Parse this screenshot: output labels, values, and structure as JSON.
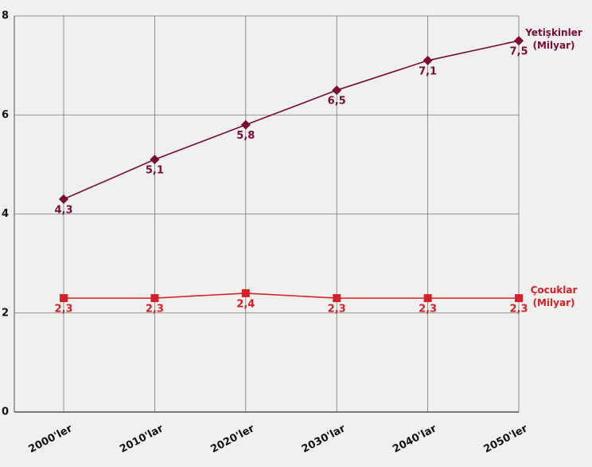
{
  "chart_data": {
    "type": "line",
    "categories": [
      "2000'ler",
      "2010'lar",
      "2020'ler",
      "2030'lar",
      "2040'lar",
      "2050'ler"
    ],
    "series": [
      {
        "name": "Yetişkinler (Milyar)",
        "color": "#7b0d35",
        "marker": "diamond",
        "values": [
          4.3,
          5.1,
          5.8,
          6.5,
          7.1,
          7.5
        ],
        "value_labels": [
          "4,3",
          "5,1",
          "5,8",
          "6,5",
          "7,1",
          "7,5"
        ]
      },
      {
        "name": "Çocuklar (Milyar)",
        "color": "#d42027",
        "marker": "square",
        "values": [
          2.3,
          2.3,
          2.4,
          2.3,
          2.3,
          2.3
        ],
        "value_labels": [
          "2,3",
          "2,3",
          "2,4",
          "2,3",
          "2,3",
          "2,3"
        ]
      }
    ],
    "ylim": [
      0,
      8
    ],
    "yticks": [
      0,
      2,
      4,
      6,
      8
    ],
    "grid": true
  }
}
